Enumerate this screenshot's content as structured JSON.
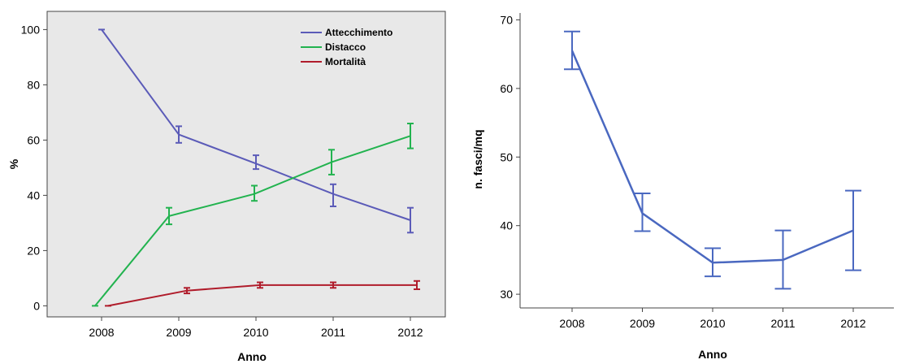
{
  "chart_data": [
    {
      "type": "line",
      "error_bars": true,
      "x": [
        "2008",
        "2009",
        "2010",
        "2011",
        "2012"
      ],
      "xlabel": "Anno",
      "ylabel": "%",
      "ylim": [
        -4,
        106
      ],
      "yticks": [
        0,
        20,
        40,
        60,
        80,
        100
      ],
      "grid": false,
      "plot_background": "#e8e8e8",
      "legend_position": "top-right",
      "series": [
        {
          "name": "Attecchimento",
          "color": "#5b5bb8",
          "values": [
            100,
            62,
            51.5,
            40.5,
            31
          ],
          "error_low": [
            100,
            59,
            49.5,
            36,
            26.5
          ],
          "error_high": [
            100,
            65,
            54.5,
            44,
            35.5
          ]
        },
        {
          "name": "Distacco",
          "color": "#22b34f",
          "values": [
            0,
            32.5,
            40.5,
            52,
            61.5
          ],
          "error_low": [
            0,
            29.5,
            38,
            47.5,
            57
          ],
          "error_high": [
            0,
            35.5,
            43.5,
            56.5,
            66
          ]
        },
        {
          "name": "Mortalità",
          "color": "#b01c2b",
          "values": [
            0,
            5.5,
            7.5,
            7.5,
            7.5
          ],
          "error_low": [
            0,
            4.5,
            6.5,
            6.5,
            6
          ],
          "error_high": [
            0,
            6.5,
            8.5,
            8.5,
            9
          ]
        }
      ]
    },
    {
      "type": "line",
      "error_bars": true,
      "x": [
        "2008",
        "2009",
        "2010",
        "2011",
        "2012"
      ],
      "xlabel": "Anno",
      "ylabel": "n. fasci/mq",
      "ylim": [
        28,
        71
      ],
      "yticks": [
        30,
        40,
        50,
        60,
        70
      ],
      "grid": false,
      "plot_background": "#ffffff",
      "series": [
        {
          "color": "#4a68c0",
          "values": [
            65.5,
            41.8,
            34.6,
            35,
            39.3
          ],
          "error_low": [
            62.8,
            39.2,
            32.6,
            30.8,
            33.5
          ],
          "error_high": [
            68.3,
            44.7,
            36.7,
            39.3,
            45.1
          ]
        }
      ]
    }
  ]
}
